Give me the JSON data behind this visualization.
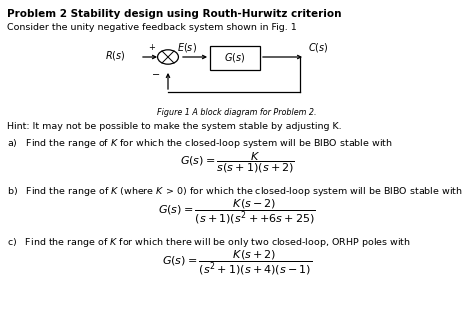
{
  "title": "Problem 2 Stability design using Routh-Hurwitz criterion",
  "line1": "Consider the unity negative feedback system shown in Fig. 1",
  "fig_caption": "Figure 1 A block diagram for Problem 2.",
  "hint": "Hint: It may not be possible to make the system stable by adjusting K.",
  "part_a": "a)   Find the range of $\\mathit{K}$ for which the closed-loop system will be BIBO stable with",
  "part_b": "b)   Find the range of $\\mathit{K}$ (where $\\mathit{K}\\,>\\,0$) for which the closed-loop system will be BIBO stable with",
  "part_c": "c)   Find the range of $\\mathit{K}$ for which there will be only two closed-loop, ORHP poles with",
  "eq_a_num": "K",
  "eq_a_den": "s(s + 1)(s + 2)",
  "eq_b_num": "K(s \\u2212 2)",
  "eq_b_den": "(s + 1)(s^{2} + {+}6s + 25)",
  "eq_c_num": "K(s + 2)",
  "eq_c_den": "(s^{2} + 1)(s + 4)(s \\u2212 1)"
}
